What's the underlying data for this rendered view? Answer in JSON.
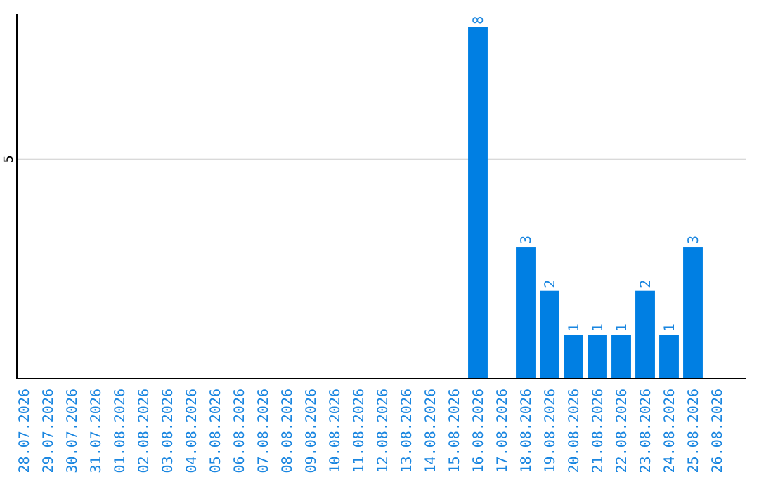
{
  "chart_data": {
    "type": "bar",
    "categories": [
      "28.07.2026",
      "29.07.2026",
      "30.07.2026",
      "31.07.2026",
      "01.08.2026",
      "02.08.2026",
      "03.08.2026",
      "04.08.2026",
      "05.08.2026",
      "06.08.2026",
      "07.08.2026",
      "08.08.2026",
      "09.08.2026",
      "10.08.2026",
      "11.08.2026",
      "12.08.2026",
      "13.08.2026",
      "14.08.2026",
      "15.08.2026",
      "16.08.2026",
      "17.08.2026",
      "18.08.2026",
      "19.08.2026",
      "20.08.2026",
      "21.08.2026",
      "22.08.2026",
      "23.08.2026",
      "24.08.2026",
      "25.08.2026",
      "26.08.2026"
    ],
    "values": [
      null,
      null,
      null,
      null,
      null,
      null,
      null,
      null,
      null,
      null,
      null,
      null,
      null,
      null,
      null,
      null,
      null,
      null,
      null,
      8,
      null,
      3,
      2,
      1,
      1,
      1,
      2,
      1,
      3,
      null
    ],
    "color": "#007fe3",
    "ylim": [
      0,
      8.3
    ],
    "yticks": [
      5
    ],
    "grid": "y",
    "data_labels": true
  }
}
